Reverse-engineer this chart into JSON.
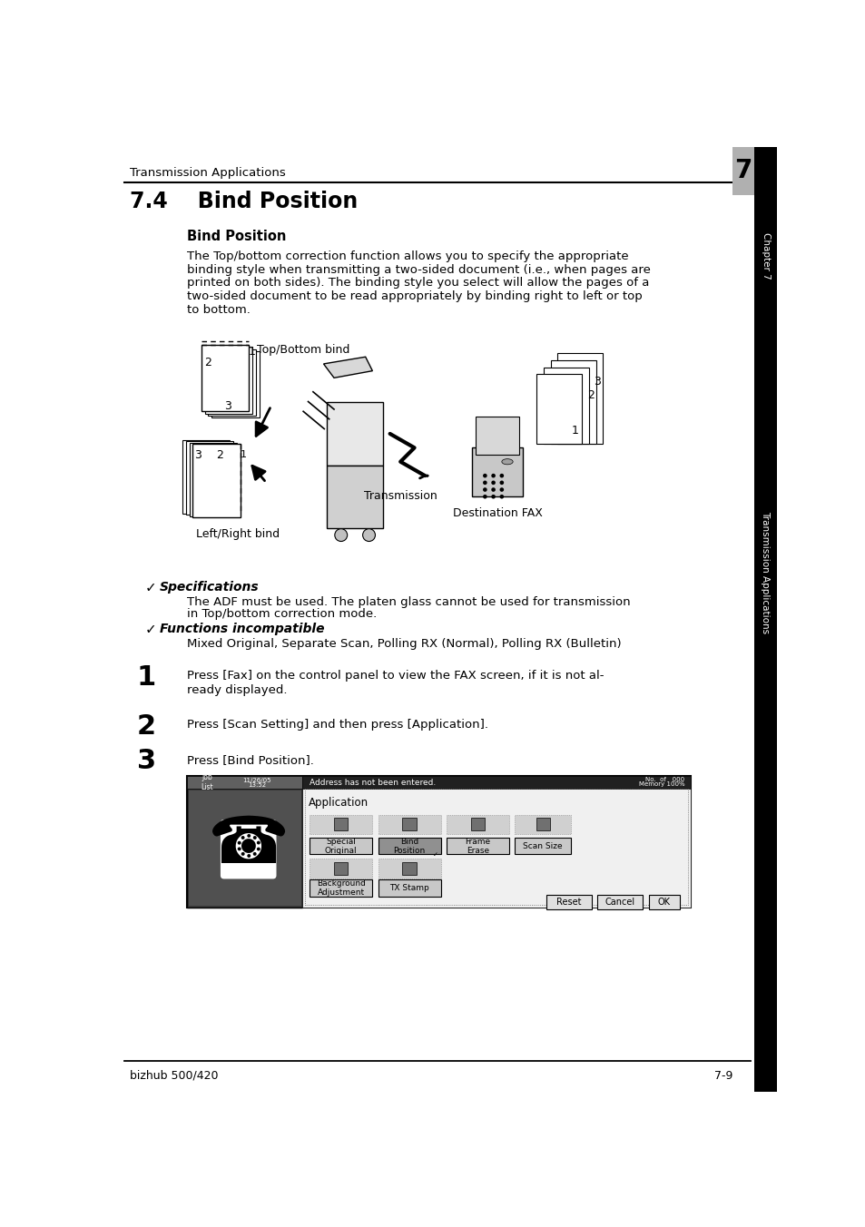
{
  "header_text": "Transmission Applications",
  "chapter_num": "7",
  "section_title": "7.4    Bind Position",
  "subsection_title": "Bind Position",
  "body_text_lines": [
    "The Top/bottom correction function allows you to specify the appropriate",
    "binding style when transmitting a two-sided document (i.e., when pages are",
    "printed on both sides). The binding style you select will allow the pages of a",
    "two-sided document to be read appropriately by binding right to left or top",
    "to bottom."
  ],
  "label_top_bottom": "Top/Bottom bind",
  "label_transmission": "Transmission",
  "label_left_right": "Left/Right bind",
  "label_dest_fax": "Destination FAX",
  "spec_title": "Specifications",
  "spec_text_lines": [
    "The ADF must be used. The platen glass cannot be used for transmission",
    "in Top/bottom correction mode."
  ],
  "func_title": "Functions incompatible",
  "func_text": "Mixed Original, Separate Scan, Polling RX (Normal), Polling RX (Bulletin)",
  "step1_num": "1",
  "step1_text_lines": [
    "Press [Fax] on the control panel to view the FAX screen, if it is not al-",
    "ready displayed."
  ],
  "step2_num": "2",
  "step2_text": "Press [Scan Setting] and then press [Application].",
  "step3_num": "3",
  "step3_text": "Press [Bind Position].",
  "footer_left": "bizhub 500/420",
  "footer_right": "7-9",
  "sidebar_text": "Transmission Applications",
  "chapter_label": "Chapter 7",
  "bg_color": "#ffffff",
  "text_color": "#000000",
  "chapter_box_color": "#aaaaaa"
}
